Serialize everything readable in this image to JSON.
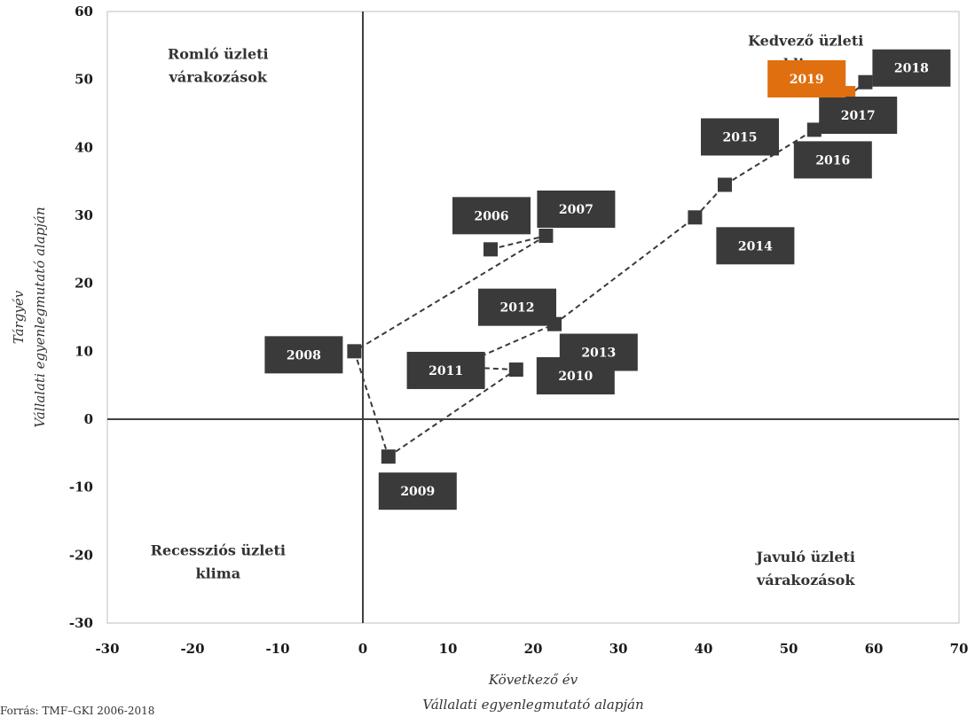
{
  "chart_data": {
    "type": "scatter",
    "xlabel_lines": [
      "Következő év",
      "Vállalati egyenlegmutató alapján"
    ],
    "ylabel_lines": [
      "Tárgyév",
      "Vállalati egyenlegmutató alapján"
    ],
    "xlim": [
      -30,
      70
    ],
    "ylim": [
      -30,
      60
    ],
    "xticks": [
      -30,
      -20,
      -10,
      0,
      10,
      20,
      30,
      40,
      50,
      60,
      70
    ],
    "yticks": [
      -30,
      -20,
      -10,
      0,
      10,
      20,
      30,
      40,
      50,
      60
    ],
    "quadrant_labels": [
      {
        "name": "top-left",
        "lines": [
          "Romló üzleti",
          "várakozások"
        ]
      },
      {
        "name": "top-right",
        "lines": [
          "Kedvező üzleti",
          "klima"
        ]
      },
      {
        "name": "bottom-left",
        "lines": [
          "Recessziós üzleti",
          "klima"
        ]
      },
      {
        "name": "bottom-right",
        "lines": [
          "Javuló üzleti",
          "várakozások"
        ]
      }
    ],
    "point_color": "#3a3a3a",
    "highlight_color": "#e0700f",
    "points": [
      {
        "label": "2006",
        "x": 15,
        "y": 25
      },
      {
        "label": "2007",
        "x": 21.5,
        "y": 27
      },
      {
        "label": "2008",
        "x": -1,
        "y": 10
      },
      {
        "label": "2009",
        "x": 3,
        "y": -5.5
      },
      {
        "label": "2010",
        "x": 18,
        "y": 7.3
      },
      {
        "label": "2011",
        "x": 11,
        "y": 7.7
      },
      {
        "label": "2012",
        "x": 22.5,
        "y": 14
      },
      {
        "label": "2013",
        "x": 10.5,
        "y": 7.5
      },
      {
        "label": "2014",
        "x": 39,
        "y": 29.7
      },
      {
        "label": "2015",
        "x": 42.5,
        "y": 34.5
      },
      {
        "label": "2016",
        "x": 53,
        "y": 42.6
      },
      {
        "label": "2017",
        "x": 54.5,
        "y": 45
      },
      {
        "label": "2018",
        "x": 59,
        "y": 49.6
      },
      {
        "label": "2019",
        "x": 57,
        "y": 48,
        "highlight": true
      }
    ],
    "connections": [
      [
        "2006",
        "2007"
      ],
      [
        "2007",
        "2008"
      ],
      [
        "2008",
        "2009"
      ],
      [
        "2009",
        "2010"
      ],
      [
        "2010",
        "2011"
      ],
      [
        "2011",
        "2012"
      ],
      [
        "2012",
        "2014"
      ],
      [
        "2014",
        "2015"
      ],
      [
        "2015",
        "2016"
      ],
      [
        "2016",
        "2017"
      ],
      [
        "2017",
        "2018"
      ]
    ]
  },
  "source_note": "Forrás: TMF–GKI 2006-2018"
}
